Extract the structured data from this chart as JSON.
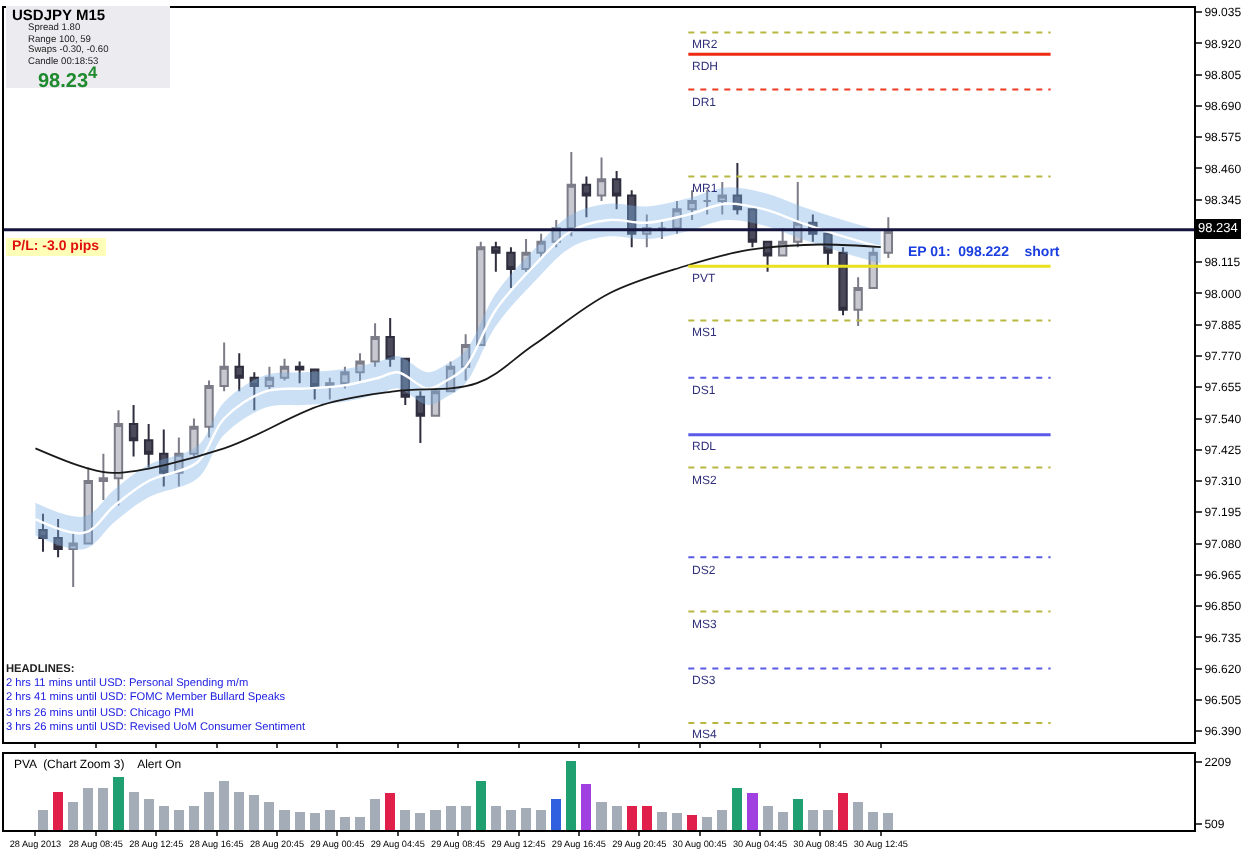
{
  "chart_data": [
    {
      "type": "candlestick",
      "title": "USDJPY  M15",
      "x": [
        "2013-08-28T05:15",
        "2013-08-28T06:15",
        "2013-08-28T07:15",
        "2013-08-28T08:15",
        "2013-08-28T09:15",
        "2013-08-28T10:15",
        "2013-08-28T11:15",
        "2013-08-28T12:15",
        "2013-08-28T13:15",
        "2013-08-28T14:15",
        "2013-08-28T15:15",
        "2013-08-28T16:15",
        "2013-08-28T17:15",
        "2013-08-28T18:15",
        "2013-08-28T19:15",
        "2013-08-28T20:15",
        "2013-08-28T21:15",
        "2013-08-28T22:15",
        "2013-08-28T23:15",
        "2013-08-29T00:15",
        "2013-08-29T01:15",
        "2013-08-29T02:15",
        "2013-08-29T03:15",
        "2013-08-29T04:15",
        "2013-08-29T05:15",
        "2013-08-29T06:15",
        "2013-08-29T07:15",
        "2013-08-29T08:15",
        "2013-08-29T09:15",
        "2013-08-29T10:15",
        "2013-08-29T11:15",
        "2013-08-29T12:15",
        "2013-08-29T13:15",
        "2013-08-29T14:15",
        "2013-08-29T15:15",
        "2013-08-29T16:15",
        "2013-08-29T17:15",
        "2013-08-29T18:15",
        "2013-08-29T19:15",
        "2013-08-29T20:15",
        "2013-08-29T21:15",
        "2013-08-29T22:15",
        "2013-08-29T23:15",
        "2013-08-30T00:15",
        "2013-08-30T01:15",
        "2013-08-30T02:15",
        "2013-08-30T03:15",
        "2013-08-30T04:15",
        "2013-08-30T05:15",
        "2013-08-30T06:15",
        "2013-08-30T07:15",
        "2013-08-30T08:15",
        "2013-08-30T09:15",
        "2013-08-30T10:15",
        "2013-08-30T11:15",
        "2013-08-30T12:15",
        "2013-08-30T13:15"
      ],
      "ohlc": [
        [
          97.13,
          97.19,
          97.05,
          97.1
        ],
        [
          97.1,
          97.17,
          97.03,
          97.06
        ],
        [
          97.06,
          97.12,
          96.92,
          97.08
        ],
        [
          97.08,
          97.36,
          97.08,
          97.31
        ],
        [
          97.31,
          97.41,
          97.24,
          97.32
        ],
        [
          97.32,
          97.57,
          97.22,
          97.52
        ],
        [
          97.52,
          97.59,
          97.4,
          97.46
        ],
        [
          97.46,
          97.52,
          97.36,
          97.41
        ],
        [
          97.41,
          97.5,
          97.29,
          97.34
        ],
        [
          97.34,
          97.47,
          97.29,
          97.41
        ],
        [
          97.41,
          97.54,
          97.4,
          97.51
        ],
        [
          97.51,
          97.68,
          97.47,
          97.66
        ],
        [
          97.66,
          97.82,
          97.64,
          97.73
        ],
        [
          97.73,
          97.78,
          97.64,
          97.69
        ],
        [
          97.69,
          97.71,
          97.57,
          97.66
        ],
        [
          97.66,
          97.73,
          97.64,
          97.69
        ],
        [
          97.69,
          97.76,
          97.68,
          97.73
        ],
        [
          97.73,
          97.75,
          97.67,
          97.72
        ],
        [
          97.72,
          97.72,
          97.61,
          97.66
        ],
        [
          97.66,
          97.69,
          97.61,
          97.67
        ],
        [
          97.67,
          97.73,
          97.65,
          97.71
        ],
        [
          97.71,
          97.78,
          97.67,
          97.75
        ],
        [
          97.75,
          97.89,
          97.73,
          97.84
        ],
        [
          97.84,
          97.91,
          97.73,
          97.76
        ],
        [
          97.76,
          97.76,
          97.59,
          97.62
        ],
        [
          97.62,
          97.64,
          97.45,
          97.55
        ],
        [
          97.55,
          97.66,
          97.55,
          97.64
        ],
        [
          97.64,
          97.75,
          97.64,
          97.73
        ],
        [
          97.73,
          97.85,
          97.68,
          97.81
        ],
        [
          97.81,
          98.19,
          97.81,
          98.17
        ],
        [
          98.17,
          98.19,
          98.08,
          98.15
        ],
        [
          98.15,
          98.17,
          98.02,
          98.09
        ],
        [
          98.09,
          98.2,
          98.08,
          98.15
        ],
        [
          98.15,
          98.22,
          98.13,
          98.19
        ],
        [
          98.19,
          98.27,
          98.17,
          98.24
        ],
        [
          98.24,
          98.52,
          98.21,
          98.4
        ],
        [
          98.4,
          98.43,
          98.28,
          98.36
        ],
        [
          98.36,
          98.5,
          98.34,
          98.42
        ],
        [
          98.42,
          98.45,
          98.31,
          98.36
        ],
        [
          98.36,
          98.38,
          98.17,
          98.22
        ],
        [
          98.22,
          98.29,
          98.17,
          98.24
        ],
        [
          98.24,
          98.27,
          98.2,
          98.24
        ],
        [
          98.24,
          98.34,
          98.22,
          98.31
        ],
        [
          98.31,
          98.38,
          98.27,
          98.34
        ],
        [
          98.34,
          98.38,
          98.29,
          98.34
        ],
        [
          98.34,
          98.41,
          98.29,
          98.36
        ],
        [
          98.36,
          98.48,
          98.29,
          98.31
        ],
        [
          98.31,
          98.31,
          98.17,
          98.19
        ],
        [
          98.19,
          98.19,
          98.08,
          98.14
        ],
        [
          98.14,
          98.24,
          98.14,
          98.19
        ],
        [
          98.19,
          98.41,
          98.17,
          98.26
        ],
        [
          98.26,
          98.29,
          98.19,
          98.22
        ],
        [
          98.22,
          98.22,
          98.1,
          98.15
        ],
        [
          98.15,
          98.17,
          97.92,
          97.94
        ],
        [
          97.94,
          98.06,
          97.88,
          98.02
        ],
        [
          98.02,
          98.17,
          98.02,
          98.15
        ],
        [
          98.15,
          98.28,
          98.13,
          98.23
        ]
      ],
      "series": [
        {
          "type": "line",
          "color": "#ffffff",
          "x": [
            "2013-08-28T04:45",
            "2013-08-28T08:00",
            "2013-08-28T10:00",
            "2013-08-28T12:15",
            "2013-08-28T15:30",
            "2013-08-28T17:15",
            "2013-08-28T20:00",
            "2013-08-28T22:30",
            "2013-08-29T01:00",
            "2013-08-29T03:30",
            "2013-08-29T04:45",
            "2013-08-29T06:45",
            "2013-08-29T08:00",
            "2013-08-29T09:15",
            "2013-08-29T11:15",
            "2013-08-29T13:45",
            "2013-08-29T16:15",
            "2013-08-29T18:45",
            "2013-08-29T21:15",
            "2013-08-30T00:00",
            "2013-08-30T02:30",
            "2013-08-30T05:00",
            "2013-08-30T07:30",
            "2013-08-30T10:15",
            "2013-08-30T12:45"
          ],
          "values": [
            97.17,
            97.12,
            97.22,
            97.31,
            97.38,
            97.54,
            97.64,
            97.65,
            97.66,
            97.69,
            97.71,
            97.65,
            97.68,
            97.73,
            97.94,
            98.1,
            98.23,
            98.27,
            98.26,
            98.29,
            98.33,
            98.31,
            98.26,
            98.21,
            98.17
          ],
          "lower": [
            97.11,
            97.06,
            97.16,
            97.25,
            97.32,
            97.48,
            97.58,
            97.59,
            97.6,
            97.63,
            97.65,
            97.59,
            97.62,
            97.67,
            97.88,
            98.04,
            98.17,
            98.21,
            98.2,
            98.23,
            98.27,
            98.25,
            98.2,
            98.15,
            98.11
          ],
          "upper": [
            97.23,
            97.18,
            97.28,
            97.37,
            97.44,
            97.6,
            97.7,
            97.71,
            97.72,
            97.75,
            97.77,
            97.71,
            97.74,
            97.79,
            98.0,
            98.16,
            98.29,
            98.33,
            98.32,
            98.35,
            98.39,
            98.37,
            98.32,
            98.27,
            98.23
          ]
        },
        {
          "type": "line",
          "color": "#1a1a1a",
          "x": [
            "2013-08-28T04:45",
            "2013-08-28T08:00",
            "2013-08-28T10:00",
            "2013-08-28T17:15",
            "2013-08-28T23:45",
            "2013-08-29T04:30",
            "2013-08-29T10:00",
            "2013-08-29T13:45",
            "2013-08-29T18:45",
            "2013-08-29T23:45",
            "2013-08-30T04:00",
            "2013-08-30T08:45",
            "2013-08-30T12:45"
          ],
          "values": [
            97.43,
            97.36,
            97.34,
            97.43,
            97.59,
            97.64,
            97.67,
            97.81,
            98.0,
            98.1,
            98.16,
            98.18,
            98.17
          ]
        }
      ],
      "xlim": [
        "2013-08-28T02:40",
        "2013-08-31T09:30"
      ],
      "xticks": [
        {
          "value": "2013-08-28T04:45",
          "label": null
        },
        {
          "value": "2013-08-28T08:45",
          "label": null
        },
        {
          "value": "2013-08-28T12:45",
          "label": null
        },
        {
          "value": "2013-08-28T16:45",
          "label": null
        },
        {
          "value": "2013-08-28T20:45",
          "label": null
        },
        {
          "value": "2013-08-29T00:45",
          "label": null
        },
        {
          "value": "2013-08-29T04:45",
          "label": null
        },
        {
          "value": "2013-08-29T08:45",
          "label": null
        },
        {
          "value": "2013-08-29T12:45",
          "label": null
        },
        {
          "value": "2013-08-29T16:45",
          "label": null
        },
        {
          "value": "2013-08-29T20:45",
          "label": null
        },
        {
          "value": "2013-08-30T00:45",
          "label": null
        },
        {
          "value": "2013-08-30T04:45",
          "label": null
        },
        {
          "value": "2013-08-30T08:45",
          "label": null
        },
        {
          "value": "2013-08-30T12:45",
          "label": null
        }
      ],
      "ylim": [
        96.35,
        99.05
      ],
      "yticks": [
        {
          "value": 96.39,
          "label": "96.390"
        },
        {
          "value": 96.505,
          "label": "96.505"
        },
        {
          "value": 96.62,
          "label": "96.620"
        },
        {
          "value": 96.735,
          "label": "96.735"
        },
        {
          "value": 96.85,
          "label": "96.850"
        },
        {
          "value": 96.965,
          "label": "96.965"
        },
        {
          "value": 97.08,
          "label": "97.080"
        },
        {
          "value": 97.195,
          "label": "97.195"
        },
        {
          "value": 97.31,
          "label": "97.310"
        },
        {
          "value": 97.425,
          "label": "97.425"
        },
        {
          "value": 97.54,
          "label": "97.540"
        },
        {
          "value": 97.655,
          "label": "97.655"
        },
        {
          "value": 97.77,
          "label": "97.770"
        },
        {
          "value": 97.885,
          "label": "97.885"
        },
        {
          "value": 98.0,
          "label": "98.000"
        },
        {
          "value": 98.115,
          "label": "98.115"
        },
        {
          "value": 98.345,
          "label": "98.345"
        },
        {
          "value": 98.46,
          "label": "98.460"
        },
        {
          "value": 98.575,
          "label": "98.575"
        },
        {
          "value": 98.69,
          "label": "98.690"
        },
        {
          "value": 98.805,
          "label": "98.805"
        },
        {
          "value": 98.92,
          "label": "98.920"
        },
        {
          "value": 99.035,
          "label": "99.035"
        }
      ],
      "tick_labels": "y",
      "ref_lines": [
        {
          "axis": "y",
          "value": 98.234,
          "label": "98.234",
          "color": "#14143c"
        },
        {
          "axis": "y",
          "value": 98.96,
          "label": "MR2",
          "color": "#b8b840",
          "line_style": "dotted"
        },
        {
          "axis": "y",
          "value": 98.88,
          "label": "RDH",
          "color": "#ee2a10",
          "line_style": "solid"
        },
        {
          "axis": "y",
          "value": 98.75,
          "label": "DR1",
          "color": "#ee3a20",
          "line_style": "dotted"
        },
        {
          "axis": "y",
          "value": 98.43,
          "label": "MR1",
          "color": "#b8b840",
          "line_style": "dotted"
        },
        {
          "axis": "y",
          "value": 98.1,
          "label": "PVT",
          "color": "#e8e020",
          "line_style": "solid"
        },
        {
          "axis": "y",
          "value": 97.9,
          "label": "MS1",
          "color": "#b8b840",
          "line_style": "dotted"
        },
        {
          "axis": "y",
          "value": 97.69,
          "label": "DS1",
          "color": "#5a5ae8",
          "line_style": "dotted"
        },
        {
          "axis": "y",
          "value": 97.48,
          "label": "RDL",
          "color": "#5a5ae8",
          "line_style": "solid"
        },
        {
          "axis": "y",
          "value": 97.36,
          "label": "MS2",
          "color": "#b8b840",
          "line_style": "dotted"
        },
        {
          "axis": "y",
          "value": 97.03,
          "label": "DS2",
          "color": "#5a5ae8",
          "line_style": "dotted"
        },
        {
          "axis": "y",
          "value": 96.83,
          "label": "MS3",
          "color": "#b8b840",
          "line_style": "dotted"
        },
        {
          "axis": "y",
          "value": 96.62,
          "label": "DS3",
          "color": "#5a5ae8",
          "line_style": "dotted"
        },
        {
          "axis": "y",
          "value": 96.42,
          "label": "MS4",
          "color": "#b8b840",
          "line_style": "dotted"
        }
      ],
      "annotations": [
        "Spread  1.80",
        "Range  100, 59",
        "Swaps  -0.30, -0.60",
        "Candle  00:18:53",
        "98.23$^{4}$",
        "P/L:  -3.0  pips",
        "HEADLINES:",
        "2 hrs 11 mins until USD: Personal Spending m/m",
        "2 hrs 41 mins until USD: FOMC Member Bullard Speaks",
        "3 hrs 26 mins until USD: Chicago PMI",
        "3 hrs 26 mins until USD: Revised UoM Consumer Sentiment",
        {
          "text": "EP 01:  098.222    short",
          "x": "2013-08-30T14:15",
          "y": 98.222
        }
      ]
    },
    {
      "type": "bar",
      "title": "PVA  (Chart Zoom 3)    Alert On",
      "x": [
        "2013-08-28T05:15",
        "2013-08-28T06:15",
        "2013-08-28T07:15",
        "2013-08-28T08:15",
        "2013-08-28T09:15",
        "2013-08-28T10:15",
        "2013-08-28T11:15",
        "2013-08-28T12:15",
        "2013-08-28T13:15",
        "2013-08-28T14:15",
        "2013-08-28T15:15",
        "2013-08-28T16:15",
        "2013-08-28T17:15",
        "2013-08-28T18:15",
        "2013-08-28T19:15",
        "2013-08-28T20:15",
        "2013-08-28T21:15",
        "2013-08-28T22:15",
        "2013-08-28T23:15",
        "2013-08-29T00:15",
        "2013-08-29T01:15",
        "2013-08-29T02:15",
        "2013-08-29T03:15",
        "2013-08-29T04:15",
        "2013-08-29T05:15",
        "2013-08-29T06:15",
        "2013-08-29T07:15",
        "2013-08-29T08:15",
        "2013-08-29T09:15",
        "2013-08-29T10:15",
        "2013-08-29T11:15",
        "2013-08-29T12:15",
        "2013-08-29T13:15",
        "2013-08-29T14:15",
        "2013-08-29T15:15",
        "2013-08-29T16:15",
        "2013-08-29T17:15",
        "2013-08-29T18:15",
        "2013-08-29T19:15",
        "2013-08-29T20:15",
        "2013-08-29T21:15",
        "2013-08-29T22:15",
        "2013-08-29T23:15",
        "2013-08-30T00:15",
        "2013-08-30T01:15",
        "2013-08-30T02:15",
        "2013-08-30T03:15",
        "2013-08-30T04:15",
        "2013-08-30T05:15",
        "2013-08-30T06:15",
        "2013-08-30T07:15",
        "2013-08-30T08:15",
        "2013-08-30T09:15",
        "2013-08-30T10:15",
        "2013-08-30T11:15",
        "2013-08-30T12:15",
        "2013-08-30T13:15"
      ],
      "values": [
        900,
        1400,
        1100,
        1500,
        1500,
        1800,
        1400,
        1200,
        1000,
        900,
        1000,
        1400,
        1700,
        1400,
        1300,
        1100,
        900,
        850,
        800,
        900,
        700,
        700,
        1200,
        1350,
        900,
        800,
        900,
        1000,
        1000,
        1700,
        1000,
        900,
        950,
        900,
        1200,
        2250,
        1600,
        1100,
        1000,
        1000,
        1000,
        850,
        800,
        750,
        700,
        900,
        1500,
        1350,
        1000,
        850,
        1200,
        900,
        900,
        1350,
        1100,
        850,
        800
      ],
      "colors": [
        "#a4acb8",
        "#e0204a",
        "#a4acb8",
        "#a4acb8",
        "#a4acb8",
        "#20a070",
        "#a4acb8",
        "#a4acb8",
        "#a4acb8",
        "#a4acb8",
        "#a4acb8",
        "#a4acb8",
        "#a4acb8",
        "#a4acb8",
        "#a4acb8",
        "#a4acb8",
        "#a4acb8",
        "#a4acb8",
        "#a4acb8",
        "#a4acb8",
        "#a4acb8",
        "#a4acb8",
        "#a4acb8",
        "#e0204a",
        "#a4acb8",
        "#a4acb8",
        "#a4acb8",
        "#a4acb8",
        "#a4acb8",
        "#20a070",
        "#a4acb8",
        "#a4acb8",
        "#a4acb8",
        "#a4acb8",
        "#3060e0",
        "#20a070",
        "#a040e0",
        "#a4acb8",
        "#a4acb8",
        "#e0204a",
        "#e0204a",
        "#a4acb8",
        "#a4acb8",
        "#e0204a",
        "#a4acb8",
        "#a4acb8",
        "#20a070",
        "#a040e0",
        "#a4acb8",
        "#a4acb8",
        "#20a070",
        "#a4acb8",
        "#a4acb8",
        "#e0204a",
        "#a4acb8",
        "#a4acb8",
        "#a4acb8"
      ],
      "xlim": [
        "2013-08-28T02:40",
        "2013-08-31T09:30"
      ],
      "xticks": [
        {
          "value": "2013-08-28T04:45",
          "label": "28 Aug 2013"
        },
        {
          "value": "2013-08-28T08:45",
          "label": "28 Aug 08:45"
        },
        {
          "value": "2013-08-28T12:45",
          "label": "28 Aug 12:45"
        },
        {
          "value": "2013-08-28T16:45",
          "label": "28 Aug 16:45"
        },
        {
          "value": "2013-08-28T20:45",
          "label": "28 Aug 20:45"
        },
        {
          "value": "2013-08-29T00:45",
          "label": "29 Aug 00:45"
        },
        {
          "value": "2013-08-29T04:45",
          "label": "29 Aug 04:45"
        },
        {
          "value": "2013-08-29T08:45",
          "label": "29 Aug 08:45"
        },
        {
          "value": "2013-08-29T12:45",
          "label": "29 Aug 12:45"
        },
        {
          "value": "2013-08-29T16:45",
          "label": "29 Aug 16:45"
        },
        {
          "value": "2013-08-29T20:45",
          "label": "29 Aug 20:45"
        },
        {
          "value": "2013-08-30T00:45",
          "label": "30 Aug 00:45"
        },
        {
          "value": "2013-08-30T04:45",
          "label": "30 Aug 04:45"
        },
        {
          "value": "2013-08-30T08:45",
          "label": "30 Aug 08:45"
        },
        {
          "value": "2013-08-30T12:45",
          "label": "30 Aug 12:45"
        }
      ],
      "ylim": [
        340,
        2436
      ],
      "yticks": [
        509,
        2209
      ]
    }
  ]
}
